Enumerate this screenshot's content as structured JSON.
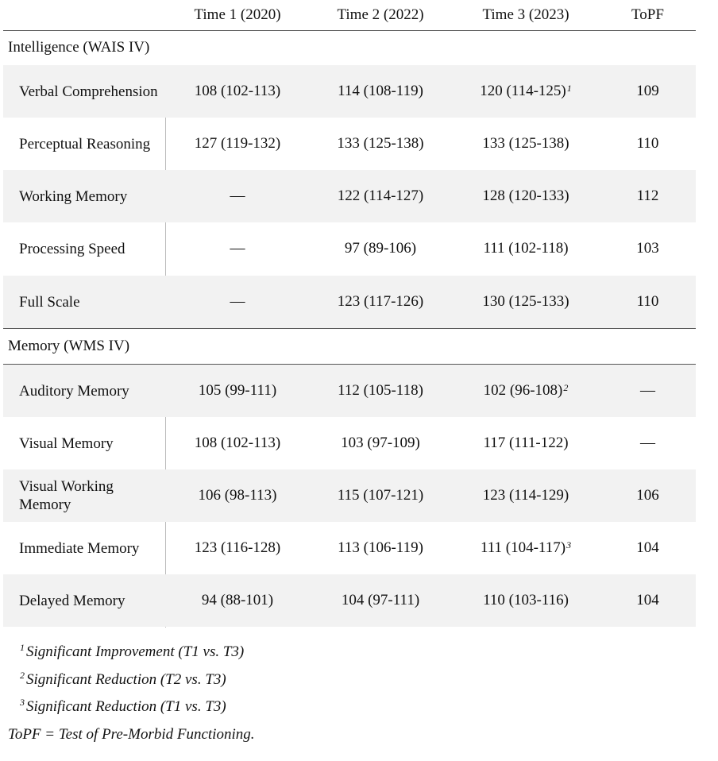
{
  "columns": [
    "Time 1 (2020)",
    "Time 2 (2022)",
    "Time 3 (2023)",
    "ToPF"
  ],
  "sections": [
    {
      "title": "Intelligence (WAIS IV)",
      "rows": [
        {
          "label": "Verbal Comprehension",
          "t1": "108 (102-113)",
          "t2": "114 (108-119)",
          "t3": "120 (114-125)",
          "t3_sup": "1",
          "topf": "109"
        },
        {
          "label": "Perceptual Reasoning",
          "t1": "127 (119-132)",
          "t2": "133 (125-138)",
          "t3": "133 (125-138)",
          "t3_sup": "",
          "topf": "110"
        },
        {
          "label": "Working Memory",
          "t1": "—",
          "t2": "122 (114-127)",
          "t3": "128 (120-133)",
          "t3_sup": "",
          "topf": "112"
        },
        {
          "label": "Processing Speed",
          "t1": "—",
          "t2": "97 (89-106)",
          "t3": "111 (102-118)",
          "t3_sup": "",
          "topf": "103"
        },
        {
          "label": "Full Scale",
          "t1": "—",
          "t2": "123 (117-126)",
          "t3": "130 (125-133)",
          "t3_sup": "",
          "topf": "110"
        }
      ]
    },
    {
      "title": "Memory (WMS IV)",
      "rows": [
        {
          "label": "Auditory Memory",
          "t1": "105 (99-111)",
          "t2": "112 (105-118)",
          "t3": "102 (96-108)",
          "t3_sup": "2",
          "topf": "—"
        },
        {
          "label": "Visual Memory",
          "t1": "108 (102-113)",
          "t2": "103 (97-109)",
          "t3": "117 (111-122)",
          "t3_sup": "",
          "topf": "—"
        },
        {
          "label": "Visual Working Memory",
          "t1": "106 (98-113)",
          "t2": "115 (107-121)",
          "t3": "123 (114-129)",
          "t3_sup": "",
          "topf": "106"
        },
        {
          "label": "Immediate Memory",
          "t1": "123 (116-128)",
          "t2": "113 (106-119)",
          "t3": "111 (104-117)",
          "t3_sup": "3",
          "topf": "104"
        },
        {
          "label": "Delayed Memory",
          "t1": "94 (88-101)",
          "t2": "104 (97-111)",
          "t3": "110 (103-116)",
          "t3_sup": "",
          "topf": "104"
        }
      ]
    }
  ],
  "footnotes": [
    {
      "mark": "1",
      "text": "Significant Improvement (T1 vs. T3)"
    },
    {
      "mark": "2",
      "text": "Significant Reduction (T2 vs. T3)"
    },
    {
      "mark": "3",
      "text": "Significant Reduction (T1 vs. T3)"
    }
  ],
  "note": "ToPF = Test of Pre-Morbid Functioning."
}
